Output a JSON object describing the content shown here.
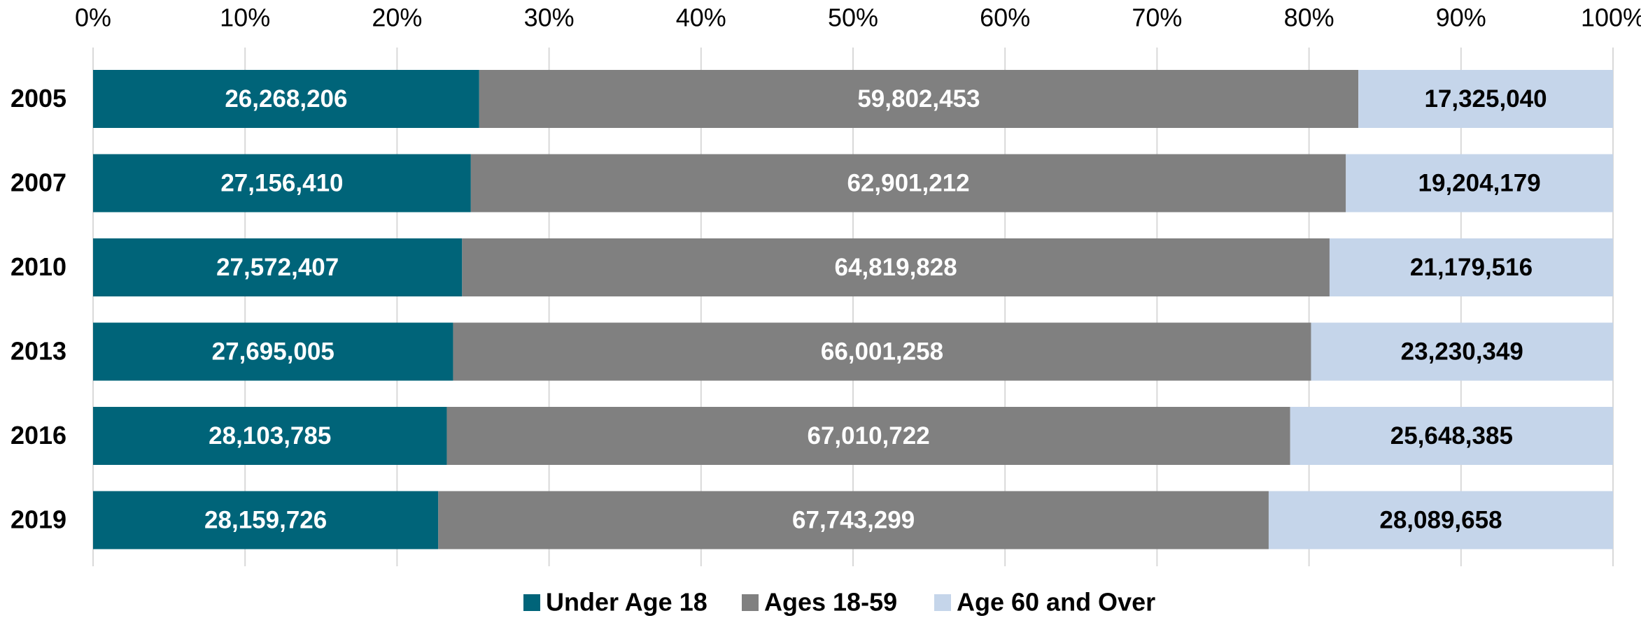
{
  "chart_data": {
    "type": "bar",
    "orientation": "horizontal",
    "stack": "percent",
    "categories": [
      "2005",
      "2007",
      "2010",
      "2013",
      "2016",
      "2019"
    ],
    "series": [
      {
        "name": "Under Age 18",
        "color": "#006479",
        "label_color": "#ffffff",
        "values": [
          26268206,
          27156410,
          27572407,
          27695005,
          28103785,
          28159726
        ],
        "value_labels": [
          "26,268,206",
          "27,156,410",
          "27,572,407",
          "27,695,005",
          "28,103,785",
          "28,159,726"
        ]
      },
      {
        "name": "Ages 18-59",
        "color": "#808080",
        "label_color": "#ffffff",
        "values": [
          59802453,
          62901212,
          64819828,
          66001258,
          67010722,
          67743299
        ],
        "value_labels": [
          "59,802,453",
          "62,901,212",
          "64,819,828",
          "66,001,258",
          "67,010,722",
          "67,743,299"
        ]
      },
      {
        "name": "Age 60 and Over",
        "color": "#c5d5ea",
        "label_color": "#000000",
        "values": [
          17325040,
          19204179,
          21179516,
          23230349,
          25648385,
          28089658
        ],
        "value_labels": [
          "17,325,040",
          "19,204,179",
          "21,179,516",
          "23,230,349",
          "25,648,385",
          "28,089,658"
        ]
      }
    ],
    "xlim": [
      0,
      100
    ],
    "xticks": [
      {
        "value": 0,
        "label": "0%"
      },
      {
        "value": 10,
        "label": "10%"
      },
      {
        "value": 20,
        "label": "20%"
      },
      {
        "value": 30,
        "label": "30%"
      },
      {
        "value": 40,
        "label": "40%"
      },
      {
        "value": 50,
        "label": "50%"
      },
      {
        "value": 60,
        "label": "60%"
      },
      {
        "value": 70,
        "label": "70%"
      },
      {
        "value": 80,
        "label": "80%"
      },
      {
        "value": 90,
        "label": "90%"
      },
      {
        "value": 100,
        "label": "100%"
      }
    ],
    "grid": true,
    "legend": "bottom"
  }
}
